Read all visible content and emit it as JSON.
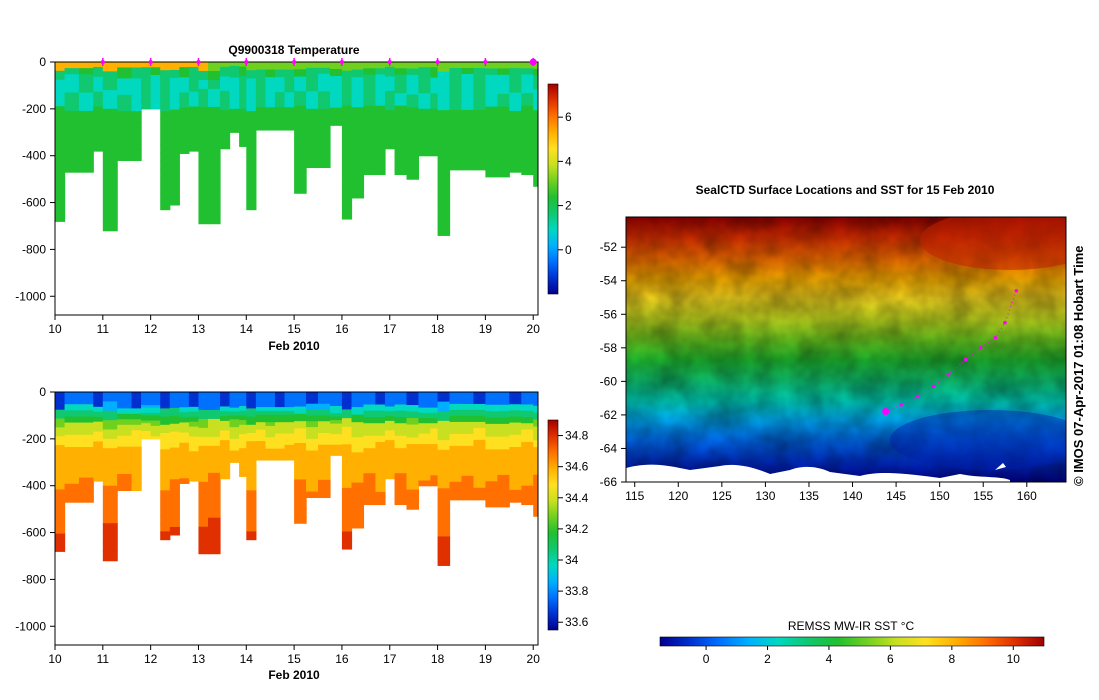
{
  "colors": {
    "rainbow": [
      "#00008f",
      "#0030d0",
      "#0070ff",
      "#00b0ff",
      "#00d8c0",
      "#10c870",
      "#20c030",
      "#70d020",
      "#c8e020",
      "#ffe020",
      "#ffb000",
      "#ff7000",
      "#e03000",
      "#a00000"
    ],
    "marker": "#ff00ff",
    "land": "#ffffff",
    "axis": "#000000"
  },
  "footer_credit": "© IMOS 07-Apr-2017 01:08 Hobart Time",
  "chart_data": [
    {
      "id": "temperature",
      "type": "heatmap",
      "title": "Q9900318  Temperature",
      "xlabel": "Feb 2010",
      "xlim": [
        10,
        20.1
      ],
      "xticks": [
        10,
        11,
        12,
        13,
        14,
        15,
        16,
        17,
        18,
        19,
        20
      ],
      "ylim": [
        -1080,
        0
      ],
      "yticks": [
        0,
        -200,
        -400,
        -600,
        -800,
        -1000
      ],
      "colorbar": {
        "min": -2,
        "max": 7.5,
        "ticks": [
          6,
          4,
          2,
          0
        ]
      },
      "surface_value": 5.2,
      "upper_layer_value": 1.2,
      "mid_layer_value": 0.6,
      "deep_value": 2.4,
      "profile_markers_day": [
        11,
        12,
        13,
        14,
        15,
        16,
        17,
        18,
        19,
        20
      ],
      "profile_days": [
        10.0,
        10.2,
        10.5,
        10.8,
        11.0,
        11.3,
        11.6,
        11.8,
        12.0,
        12.2,
        12.4,
        12.6,
        12.8,
        13.0,
        13.2,
        13.45,
        13.65,
        13.85,
        14.0,
        14.2,
        14.4,
        14.6,
        14.8,
        15.0,
        15.25,
        15.5,
        15.75,
        16.0,
        16.2,
        16.45,
        16.7,
        16.9,
        17.1,
        17.35,
        17.6,
        17.85,
        18.0,
        18.25,
        18.5,
        18.75,
        19.0,
        19.25,
        19.5,
        19.75,
        20.0
      ],
      "profile_max_depths": [
        -680,
        -470,
        -470,
        -380,
        -720,
        -420,
        -420,
        -200,
        -200,
        -630,
        -610,
        -390,
        -380,
        -690,
        -690,
        -370,
        -300,
        -360,
        -630,
        -290,
        -290,
        -290,
        -290,
        -560,
        -450,
        -450,
        -270,
        -670,
        -580,
        -480,
        -480,
        -370,
        -480,
        -500,
        -400,
        -400,
        -740,
        -460,
        -460,
        -460,
        -490,
        -490,
        -470,
        -480,
        -530
      ]
    },
    {
      "id": "salinity",
      "type": "heatmap",
      "title": "",
      "xlabel": "Feb 2010",
      "xlim": [
        10,
        20.1
      ],
      "xticks": [
        10,
        11,
        12,
        13,
        14,
        15,
        16,
        17,
        18,
        19,
        20
      ],
      "ylim": [
        -1080,
        0
      ],
      "yticks": [
        0,
        -200,
        -400,
        -600,
        -800,
        -1000
      ],
      "colorbar": {
        "min": 33.55,
        "max": 34.9,
        "ticks": [
          34.8,
          34.6,
          34.4,
          34.2,
          34,
          33.8,
          33.6
        ]
      },
      "profile_max_depths": [
        -680,
        -470,
        -470,
        -380,
        -720,
        -420,
        -420,
        -200,
        -200,
        -630,
        -610,
        -390,
        -380,
        -690,
        -690,
        -370,
        -300,
        -360,
        -630,
        -290,
        -290,
        -290,
        -290,
        -560,
        -450,
        -450,
        -270,
        -670,
        -580,
        -480,
        -480,
        -370,
        -480,
        -500,
        -400,
        -400,
        -740,
        -460,
        -460,
        -460,
        -490,
        -490,
        -470,
        -480,
        -530
      ]
    },
    {
      "id": "sst-map",
      "type": "heatmap",
      "title": "SealCTD Surface Locations and SST for 15 Feb 2010",
      "xlim": [
        114,
        164.5
      ],
      "xticks": [
        115,
        120,
        125,
        130,
        135,
        140,
        145,
        150,
        155,
        160
      ],
      "ylim": [
        -66,
        -50.2
      ],
      "yticks": [
        -52,
        -54,
        -56,
        -58,
        -60,
        -62,
        -64,
        -66
      ],
      "track": [
        {
          "lon": 158.8,
          "lat": -54.6
        },
        {
          "lon": 157.5,
          "lat": -56.5
        },
        {
          "lon": 156.4,
          "lat": -57.4
        },
        {
          "lon": 154.7,
          "lat": -58.0
        },
        {
          "lon": 153.0,
          "lat": -58.7
        },
        {
          "lon": 151.0,
          "lat": -59.6
        },
        {
          "lon": 149.3,
          "lat": -60.3
        },
        {
          "lon": 147.5,
          "lat": -60.9
        },
        {
          "lon": 145.6,
          "lat": -61.4
        },
        {
          "lon": 143.8,
          "lat": -61.8
        }
      ],
      "colorbar": {
        "title": "REMSS MW-IR SST °C",
        "min": -1.5,
        "max": 11,
        "ticks": [
          0,
          2,
          4,
          6,
          8,
          10
        ]
      }
    }
  ]
}
